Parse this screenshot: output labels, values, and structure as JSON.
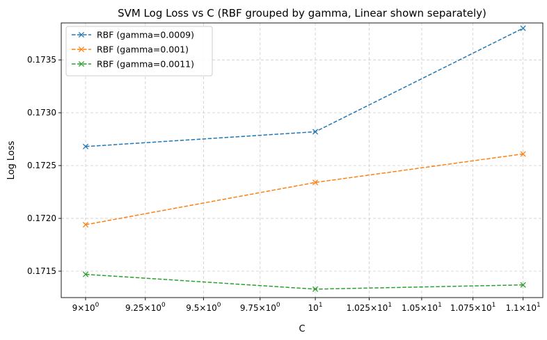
{
  "chart_data": {
    "type": "line",
    "title": "SVM Log Loss vs C (RBF grouped by gamma, Linear shown separately)",
    "xlabel": "C",
    "ylabel": "Log Loss",
    "x_scale": "log",
    "xlim": [
      8.9,
      11.1
    ],
    "ylim": [
      0.17125,
      0.17385
    ],
    "grid": true,
    "legend_position": "top-left",
    "x_ticks": [
      {
        "value": 9.0,
        "base": "9",
        "coef": "×10",
        "exp": "0"
      },
      {
        "value": 9.25,
        "base": "9.25",
        "coef": "×10",
        "exp": "0"
      },
      {
        "value": 9.5,
        "base": "9.5",
        "coef": "×10",
        "exp": "0"
      },
      {
        "value": 9.75,
        "base": "9.75",
        "coef": "×10",
        "exp": "0"
      },
      {
        "value": 10.0,
        "base": "",
        "coef": "10",
        "exp": "1"
      },
      {
        "value": 10.25,
        "base": "1.025",
        "coef": "×10",
        "exp": "1"
      },
      {
        "value": 10.5,
        "base": "1.05",
        "coef": "×10",
        "exp": "1"
      },
      {
        "value": 10.75,
        "base": "1.075",
        "coef": "×10",
        "exp": "1"
      },
      {
        "value": 11.0,
        "base": "1.1",
        "coef": "×10",
        "exp": "1"
      }
    ],
    "y_ticks": [
      "0.1715",
      "0.1720",
      "0.1725",
      "0.1730",
      "0.1735"
    ],
    "x": [
      9,
      10,
      11
    ],
    "series": [
      {
        "name": "RBF (gamma=0.0009)",
        "color": "#1f77b4",
        "values": [
          0.17268,
          0.17282,
          0.1738
        ]
      },
      {
        "name": "RBF (gamma=0.001)",
        "color": "#ff7f0e",
        "values": [
          0.17194,
          0.17234,
          0.17261
        ]
      },
      {
        "name": "RBF (gamma=0.0011)",
        "color": "#2ca02c",
        "values": [
          0.17147,
          0.17133,
          0.17137
        ]
      }
    ]
  }
}
